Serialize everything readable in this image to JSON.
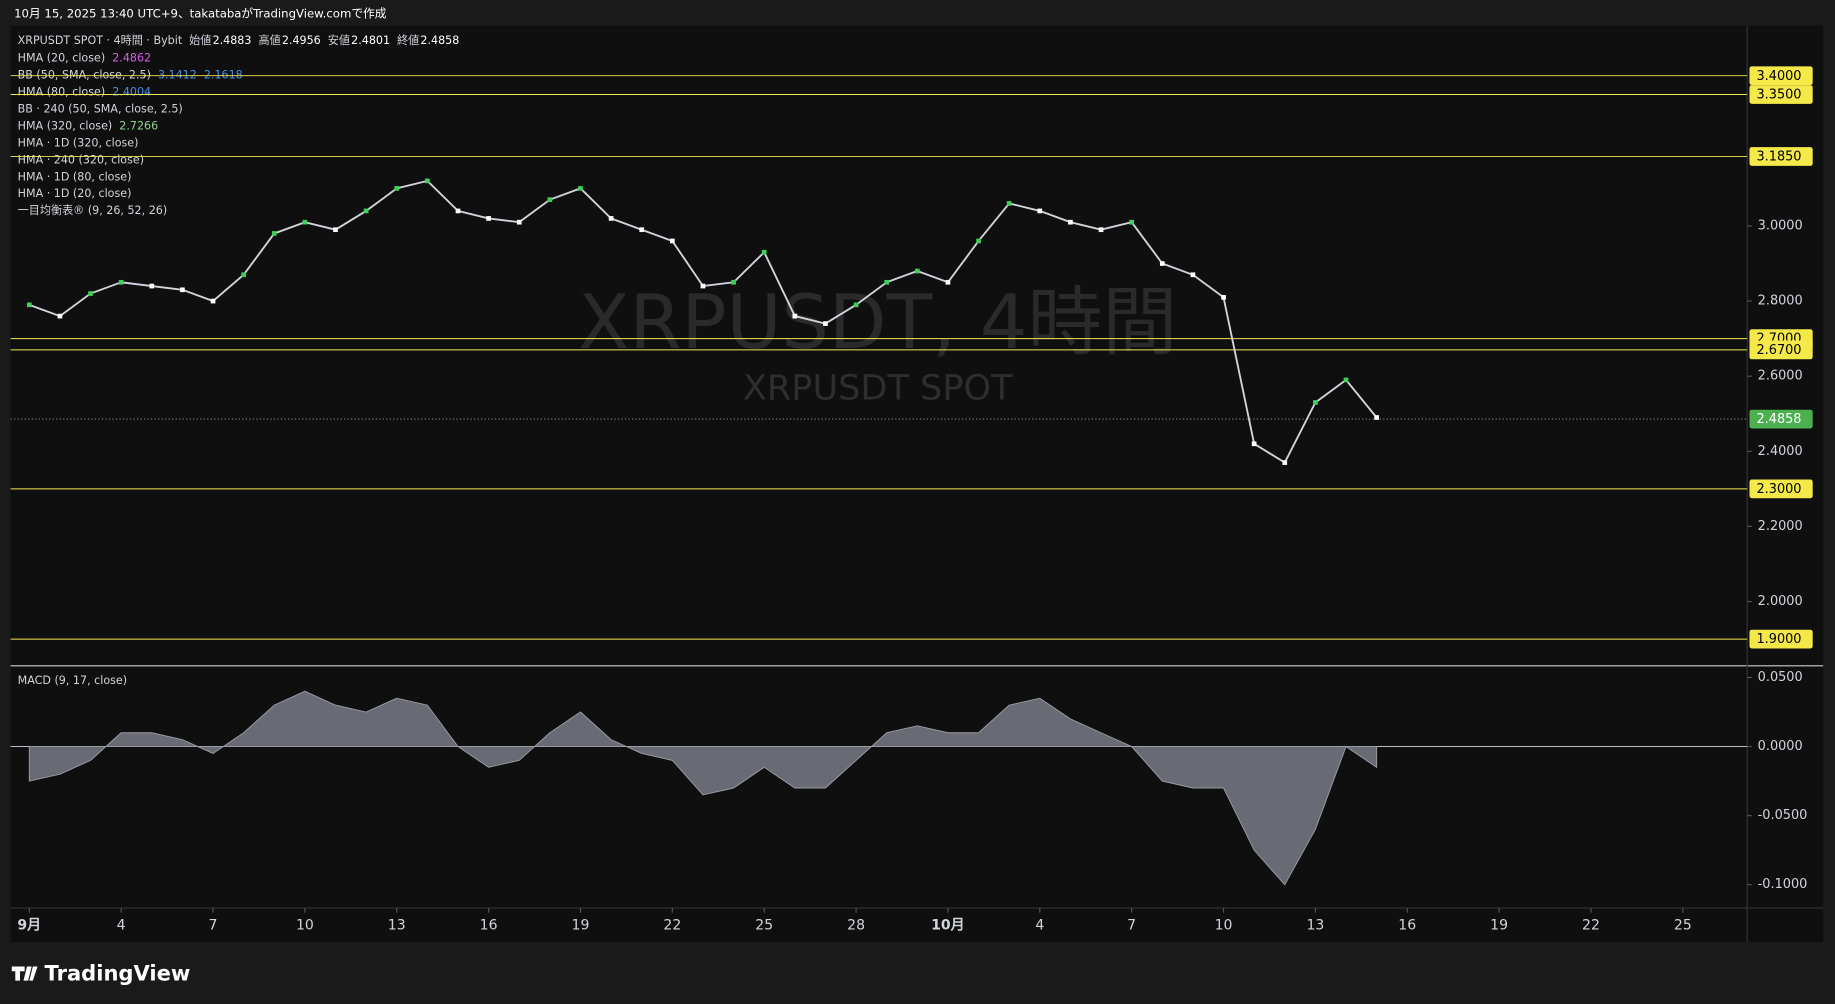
{
  "header": {
    "caption": "10月 15, 2025 13:40 UTC+9、takatabaがTradingView.comで作成"
  },
  "chart_data": {
    "type": "line",
    "title": "XRPUSDT SPOT · 4時間 · Bybit",
    "ohlc": [
      {
        "label": "始値",
        "value": 2.4883
      },
      {
        "label": "高値",
        "value": 2.4956
      },
      {
        "label": "安値",
        "value": 2.4801
      },
      {
        "label": "終値",
        "value": 2.4858
      }
    ],
    "indicators": [
      {
        "name": "HMA (20, close)",
        "values": [
          2.4862
        ],
        "color": "#d55fe0"
      },
      {
        "name": "BB (50, SMA, close, 2.5)",
        "values": [
          3.1412,
          2.1618
        ],
        "color": "#4a8fe0"
      },
      {
        "name": "HMA (80, close)",
        "values": [
          2.4004
        ],
        "color": "#4a8fe0"
      },
      {
        "name": "BB · 240 (50, SMA, close, 2.5)",
        "values": []
      },
      {
        "name": "HMA (320, close)",
        "values": [
          2.7266
        ],
        "color": "#8fd18f"
      },
      {
        "name": "HMA · 1D (320, close)",
        "values": []
      },
      {
        "name": "HMA · 240 (320, close)",
        "values": []
      },
      {
        "name": "HMA · 1D (80, close)",
        "values": []
      },
      {
        "name": "HMA · 1D (20, close)",
        "values": []
      },
      {
        "name": "一目均衡表® (9, 26, 52, 26)",
        "values": []
      }
    ],
    "watermark": "XRPUSDT, 4時間",
    "watermark_sub": "XRPUSDT SPOT",
    "x": [
      0,
      1,
      2,
      3,
      4,
      5,
      6,
      7,
      8,
      9,
      10,
      11,
      12,
      13,
      14,
      15,
      16,
      17,
      18,
      19,
      20,
      21,
      22,
      23,
      24,
      25,
      26,
      27,
      28,
      29,
      30,
      31,
      32,
      33,
      34,
      35,
      36,
      37,
      38,
      39,
      40,
      41,
      42,
      43,
      44
    ],
    "values": [
      2.79,
      2.76,
      2.82,
      2.85,
      2.84,
      2.83,
      2.8,
      2.87,
      2.98,
      3.01,
      2.99,
      3.04,
      3.1,
      3.12,
      3.04,
      3.02,
      3.01,
      3.07,
      3.1,
      3.02,
      2.99,
      2.96,
      2.84,
      2.85,
      2.93,
      2.76,
      2.74,
      2.79,
      2.85,
      2.88,
      2.85,
      2.96,
      3.06,
      3.04,
      3.01,
      2.99,
      3.01,
      2.9,
      2.87,
      2.81,
      2.42,
      2.37,
      2.53,
      2.59,
      2.49
    ],
    "color": "#d1d4dc",
    "xlim": [
      -0.61,
      56.1
    ],
    "xticks": [
      {
        "value": 0,
        "label": "9月"
      },
      {
        "value": 3,
        "label": "4"
      },
      {
        "value": 6,
        "label": "7"
      },
      {
        "value": 9,
        "label": "10"
      },
      {
        "value": 12,
        "label": "13"
      },
      {
        "value": 15,
        "label": "16"
      },
      {
        "value": 18,
        "label": "19"
      },
      {
        "value": 21,
        "label": "22"
      },
      {
        "value": 24,
        "label": "25"
      },
      {
        "value": 27,
        "label": "28"
      },
      {
        "value": 30,
        "label": "10月"
      },
      {
        "value": 33,
        "label": "4"
      },
      {
        "value": 36,
        "label": "7"
      },
      {
        "value": 39,
        "label": "10"
      },
      {
        "value": 42,
        "label": "13"
      },
      {
        "value": 45,
        "label": "16"
      },
      {
        "value": 48,
        "label": "19"
      },
      {
        "value": 51,
        "label": "22"
      },
      {
        "value": 54,
        "label": "25"
      }
    ],
    "ylim": [
      1.832,
      3.533
    ],
    "yticks": [
      {
        "value": 3.0,
        "label": "3.0000"
      },
      {
        "value": 2.8,
        "label": "2.8000"
      },
      {
        "value": 2.6,
        "label": "2.6000"
      },
      {
        "value": 2.4,
        "label": "2.4000"
      },
      {
        "value": 2.2,
        "label": "2.2000"
      },
      {
        "value": 2.0,
        "label": "2.0000"
      }
    ],
    "levels": [
      {
        "value": 3.4,
        "label": "3.4000"
      },
      {
        "value": 3.35,
        "label": "3.3500"
      },
      {
        "value": 3.185,
        "label": "3.1850"
      },
      {
        "value": 2.7,
        "label": "2.7000"
      },
      {
        "value": 2.67,
        "label": "2.6700"
      },
      {
        "value": 2.3,
        "label": "2.3000"
      },
      {
        "value": 1.9,
        "label": "1.9000"
      }
    ],
    "level_color": "#f5e94a",
    "last": 2.4858,
    "last_color": "#4caf50",
    "macd": {
      "title": "MACD (9, 17, close)",
      "values": [
        -0.025,
        -0.02,
        -0.01,
        0.01,
        0.01,
        0.005,
        -0.005,
        0.01,
        0.03,
        0.04,
        0.03,
        0.025,
        0.035,
        0.03,
        0.0,
        -0.015,
        -0.01,
        0.01,
        0.025,
        0.005,
        -0.005,
        -0.01,
        -0.035,
        -0.03,
        -0.015,
        -0.03,
        -0.03,
        -0.01,
        0.01,
        0.015,
        0.01,
        0.01,
        0.03,
        0.035,
        0.02,
        0.01,
        0.0,
        -0.025,
        -0.03,
        -0.03,
        -0.075,
        -0.1,
        -0.06,
        0.0,
        -0.015
      ],
      "color": "#787b86",
      "ylim": [
        -0.1169,
        0.0576
      ],
      "yticks": [
        {
          "value": 0.05,
          "label": "0.0500"
        },
        {
          "value": 0.0,
          "label": "0.0000"
        },
        {
          "value": -0.05,
          "label": "-0.0500"
        },
        {
          "value": -0.1,
          "label": "-0.1000"
        }
      ]
    }
  },
  "footer": {
    "brand": "TradingView"
  }
}
